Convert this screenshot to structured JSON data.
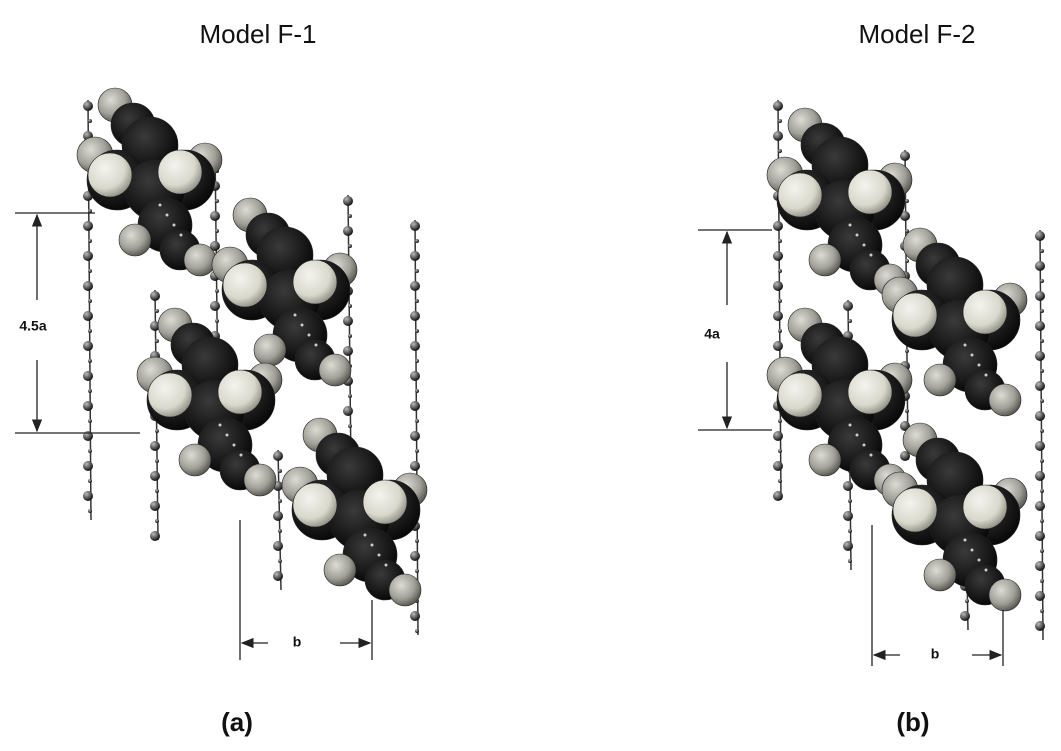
{
  "panels": [
    {
      "title": "Model F-1",
      "height_label": "4.5a",
      "width_label": "b",
      "caption": "(a)"
    },
    {
      "title": "Model F-2",
      "height_label": "4a",
      "width_label": "b",
      "caption": "(b)"
    }
  ]
}
